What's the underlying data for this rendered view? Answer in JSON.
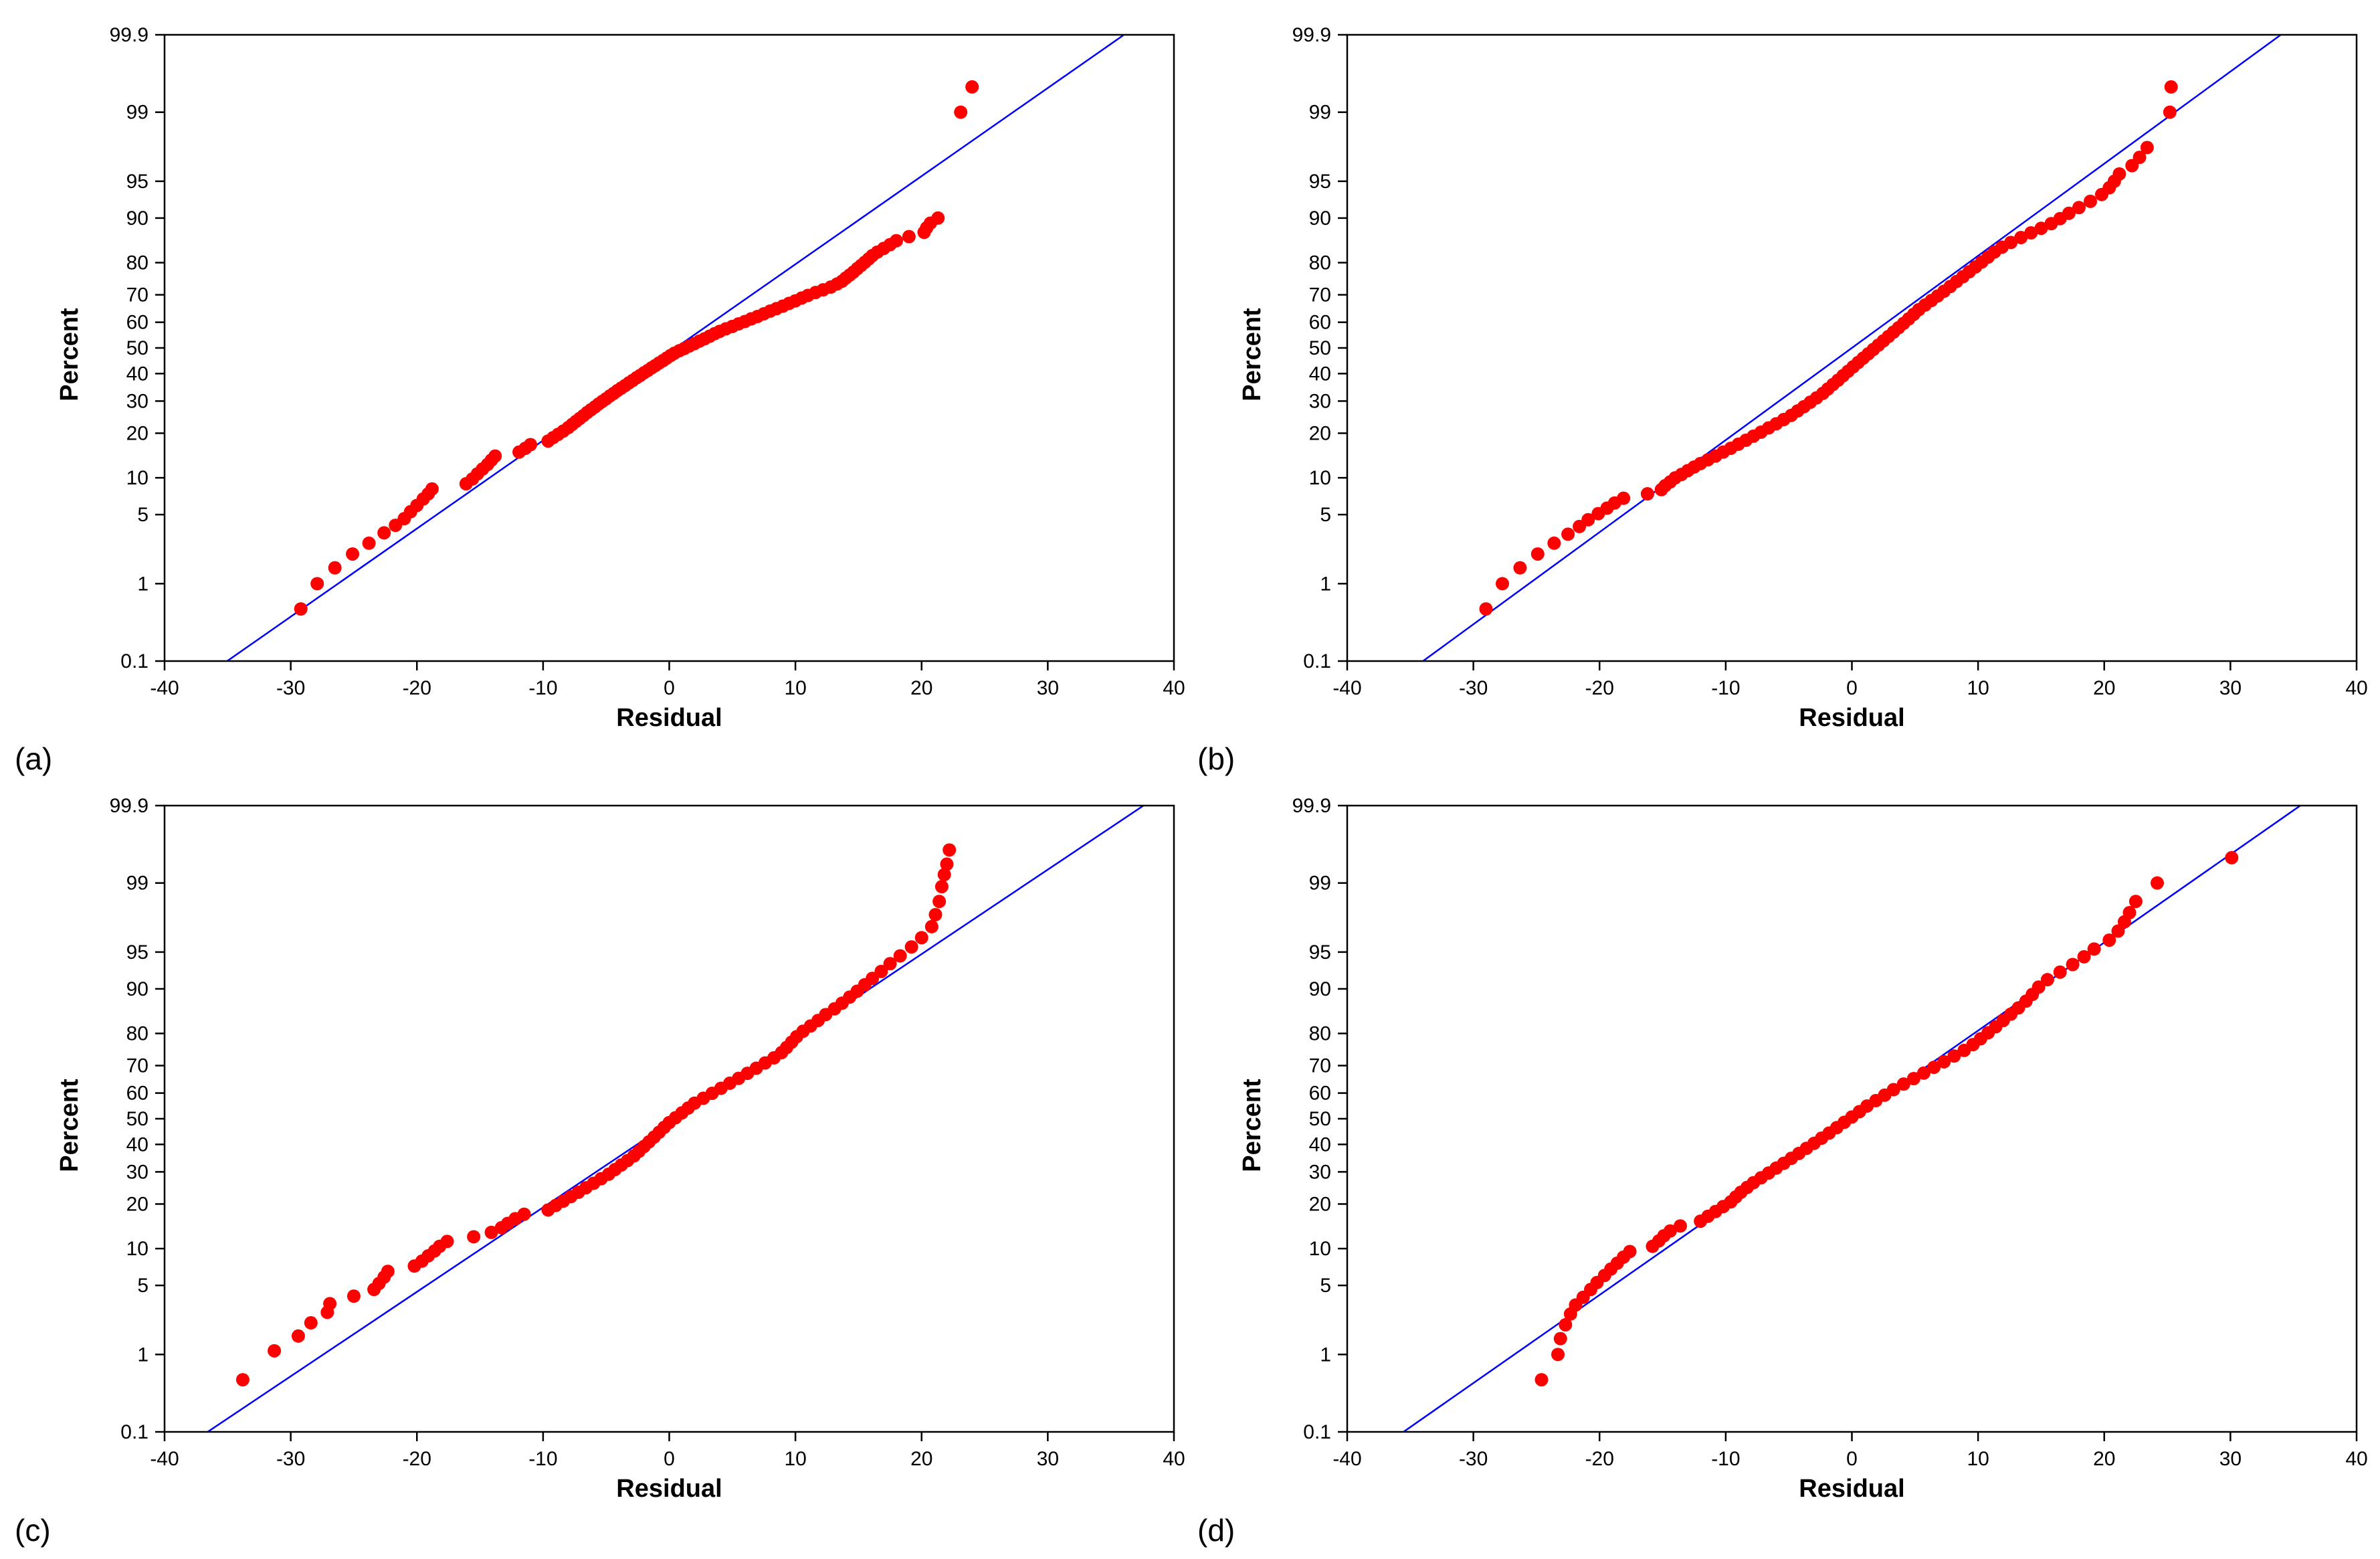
{
  "figure": {
    "panel_labels": [
      "(a)",
      "(b)",
      "(c)",
      "(d)"
    ]
  },
  "colors": {
    "points": "#ff0000",
    "fit_line": "#0000ff",
    "frame": "#000000"
  },
  "chart_data": [
    {
      "type": "scatter",
      "subtype": "normal-probability-plot",
      "panel": "(a)",
      "xlabel": "Residual",
      "ylabel": "Percent",
      "xlim": [
        -40,
        40
      ],
      "xticks": [
        -40,
        -30,
        -20,
        -10,
        0,
        10,
        20,
        30,
        40
      ],
      "xtick_labels": [
        "-40",
        "-30",
        "-20",
        "-10",
        "0",
        "10",
        "20",
        "30",
        "40"
      ],
      "ylim": [
        0.1,
        99.9
      ],
      "yticks": [
        0.1,
        1,
        5,
        10,
        20,
        30,
        40,
        50,
        60,
        70,
        80,
        90,
        95,
        99,
        99.9
      ],
      "ytick_labels": [
        "0.1",
        "1",
        "5",
        "10",
        "20",
        "30",
        "40",
        "50",
        "60",
        "70",
        "80",
        "90",
        "95",
        "99",
        "99.9"
      ],
      "fit_line": {
        "mean": 0.5,
        "sd": 11.5
      },
      "x": [
        -29.2,
        -27.9,
        -26.5,
        -25.1,
        -23.8,
        -22.6,
        -21.7,
        -21.0,
        -20.5,
        -20.0,
        -19.5,
        -19.1,
        -18.8,
        -16.1,
        -15.6,
        -15.2,
        -14.8,
        -14.4,
        -14.1,
        -13.8,
        -11.9,
        -11.4,
        -11.0,
        -9.6,
        -9.2,
        -8.8,
        -8.4,
        -8.0,
        -7.7,
        -7.4,
        -7.1,
        -6.8,
        -6.5,
        -6.2,
        -5.9,
        -5.6,
        -5.3,
        -5.0,
        -4.7,
        -4.4,
        -4.1,
        -3.8,
        -3.5,
        -3.2,
        -2.9,
        -2.6,
        -2.3,
        -2.0,
        -1.7,
        -1.4,
        -1.1,
        -0.8,
        -0.5,
        -0.2,
        0.1,
        0.4,
        0.8,
        1.2,
        1.6,
        2.0,
        2.4,
        2.8,
        3.2,
        3.6,
        4.0,
        4.5,
        5.0,
        5.5,
        6.0,
        6.5,
        7.0,
        7.5,
        8.0,
        8.5,
        9.0,
        9.5,
        10.0,
        10.5,
        11.0,
        11.6,
        12.2,
        12.8,
        13.3,
        13.7,
        14.0,
        14.3,
        14.6,
        14.9,
        15.2,
        15.5,
        15.8,
        16.1,
        16.5,
        17.0,
        17.5,
        18.0,
        19.0,
        20.2,
        20.4,
        20.7,
        21.3,
        23.1,
        24.0
      ],
      "y": [
        0.5,
        1.0,
        1.5,
        2.1,
        2.7,
        3.4,
        4.0,
        4.6,
        5.3,
        6.0,
        6.8,
        7.5,
        8.2,
        9.0,
        9.8,
        10.7,
        11.6,
        12.5,
        13.4,
        14.3,
        15.2,
        16.1,
        17.0,
        17.9,
        18.8,
        19.7,
        20.6,
        21.6,
        22.5,
        23.4,
        24.3,
        25.2,
        26.2,
        27.1,
        28.0,
        29.0,
        29.9,
        30.8,
        31.8,
        32.7,
        33.7,
        34.6,
        35.5,
        36.5,
        37.4,
        38.4,
        39.3,
        40.3,
        41.2,
        42.2,
        43.1,
        44.1,
        45.0,
        46.0,
        47.0,
        47.9,
        48.9,
        49.8,
        50.8,
        51.7,
        52.7,
        53.6,
        54.6,
        55.6,
        56.5,
        57.5,
        58.4,
        59.4,
        60.3,
        61.3,
        62.2,
        63.2,
        64.2,
        65.1,
        66.0,
        67.0,
        67.9,
        68.9,
        69.8,
        70.8,
        71.7,
        72.6,
        73.6,
        74.5,
        75.5,
        76.4,
        77.3,
        78.3,
        79.2,
        80.1,
        81.0,
        81.9,
        82.8,
        83.7,
        84.6,
        85.5,
        86.4,
        87.3,
        88.2,
        89.1,
        90.0,
        99.0,
        99.5
      ]
    },
    {
      "type": "scatter",
      "subtype": "normal-probability-plot",
      "panel": "(b)",
      "xlabel": "Residual",
      "ylabel": "Percent",
      "xlim": [
        -40,
        40
      ],
      "xticks": [
        -40,
        -30,
        -20,
        -10,
        0,
        10,
        20,
        30,
        40
      ],
      "xtick_labels": [
        "-40",
        "-30",
        "-20",
        "-10",
        "0",
        "10",
        "20",
        "30",
        "40"
      ],
      "ylim": [
        0.1,
        99.9
      ],
      "yticks": [
        0.1,
        1,
        5,
        10,
        20,
        30,
        40,
        50,
        60,
        70,
        80,
        90,
        95,
        99,
        99.9
      ],
      "ytick_labels": [
        "0.1",
        "1",
        "5",
        "10",
        "20",
        "30",
        "40",
        "50",
        "60",
        "70",
        "80",
        "90",
        "95",
        "99",
        "99.9"
      ],
      "fit_line": {
        "mean": 0.0,
        "sd": 11.0
      },
      "x": [
        -29.0,
        -27.7,
        -26.3,
        -24.9,
        -23.6,
        -22.5,
        -21.6,
        -20.9,
        -20.1,
        -19.4,
        -18.8,
        -18.1,
        -16.2,
        -15.1,
        -14.8,
        -14.4,
        -14.0,
        -13.5,
        -13.0,
        -12.5,
        -12.0,
        -11.4,
        -10.8,
        -10.2,
        -9.6,
        -9.0,
        -8.4,
        -7.8,
        -7.2,
        -6.6,
        -6.0,
        -5.4,
        -4.8,
        -4.3,
        -3.8,
        -3.3,
        -2.8,
        -2.3,
        -1.9,
        -1.5,
        -1.1,
        -0.7,
        -0.3,
        0.1,
        0.5,
        0.9,
        1.3,
        1.7,
        2.1,
        2.5,
        2.9,
        3.3,
        3.7,
        4.1,
        4.5,
        4.9,
        5.3,
        5.8,
        6.3,
        6.8,
        7.3,
        7.8,
        8.3,
        8.8,
        9.3,
        9.8,
        10.3,
        10.8,
        11.3,
        11.9,
        12.6,
        13.4,
        14.2,
        15.0,
        15.8,
        16.5,
        17.2,
        18.0,
        18.9,
        19.8,
        20.4,
        20.8,
        21.2,
        22.2,
        22.8,
        23.4,
        25.2,
        25.3
      ],
      "y": [
        0.5,
        1.0,
        1.5,
        2.1,
        2.7,
        3.3,
        3.9,
        4.5,
        5.1,
        5.7,
        6.3,
        6.9,
        7.5,
        8.1,
        8.7,
        9.3,
        10.0,
        10.6,
        11.3,
        12.0,
        12.7,
        13.5,
        14.3,
        15.2,
        16.1,
        17.1,
        18.1,
        19.2,
        20.3,
        21.5,
        22.7,
        24.0,
        25.3,
        26.7,
        28.1,
        29.6,
        31.1,
        32.7,
        34.3,
        35.9,
        37.5,
        39.2,
        40.9,
        42.6,
        44.3,
        46.0,
        47.7,
        49.4,
        51.1,
        52.8,
        54.5,
        56.2,
        57.9,
        59.6,
        61.3,
        63.0,
        64.7,
        66.4,
        68.0,
        69.6,
        71.2,
        72.8,
        74.4,
        75.9,
        77.4,
        78.8,
        80.2,
        81.5,
        82.8,
        84.0,
        85.1,
        86.2,
        87.2,
        88.1,
        89.0,
        89.9,
        90.8,
        91.7,
        92.6,
        93.5,
        94.3,
        95.0,
        95.7,
        96.4,
        97.0,
        97.6,
        99.0,
        99.5
      ]
    },
    {
      "type": "scatter",
      "subtype": "normal-probability-plot",
      "panel": "(c)",
      "xlabel": "Residual",
      "ylabel": "Percent",
      "xlim": [
        -40,
        40
      ],
      "xticks": [
        -40,
        -30,
        -20,
        -10,
        0,
        10,
        20,
        30,
        40
      ],
      "xtick_labels": [
        "-40",
        "-30",
        "-20",
        "-10",
        "0",
        "10",
        "20",
        "30",
        "40"
      ],
      "ylim": [
        0.1,
        99.9
      ],
      "yticks": [
        0.1,
        1,
        5,
        10,
        20,
        30,
        40,
        50,
        60,
        70,
        80,
        90,
        95,
        99,
        99.9
      ],
      "ytick_labels": [
        "0.1",
        "1",
        "5",
        "10",
        "20",
        "30",
        "40",
        "50",
        "60",
        "70",
        "80",
        "90",
        "95",
        "99",
        "99.9"
      ],
      "fit_line": {
        "mean": 0.5,
        "sd": 12.0
      },
      "x": [
        -33.8,
        -31.3,
        -29.4,
        -28.4,
        -27.1,
        -26.9,
        -25.0,
        -23.4,
        -23.0,
        -22.6,
        -22.3,
        -20.2,
        -19.6,
        -19.1,
        -18.6,
        -18.2,
        -17.6,
        -15.5,
        -14.1,
        -13.3,
        -12.8,
        -12.2,
        -11.5,
        -9.6,
        -9.0,
        -8.4,
        -7.8,
        -7.2,
        -6.6,
        -6.0,
        -5.4,
        -4.8,
        -4.3,
        -3.8,
        -3.3,
        -2.8,
        -2.4,
        -2.0,
        -1.6,
        -1.2,
        -0.8,
        -0.4,
        0.0,
        0.5,
        1.0,
        1.5,
        2.0,
        2.7,
        3.4,
        4.1,
        4.8,
        5.5,
        6.2,
        6.9,
        7.6,
        8.3,
        8.9,
        9.3,
        9.7,
        10.1,
        10.6,
        11.2,
        11.8,
        12.4,
        13.1,
        13.7,
        14.3,
        14.9,
        15.5,
        16.1,
        16.8,
        17.5,
        18.3,
        19.2,
        20.0,
        20.8,
        21.1,
        21.4,
        21.6,
        21.8,
        22.0,
        22.2
      ],
      "y": [
        0.5,
        1.1,
        1.6,
        2.2,
        2.8,
        3.4,
        4.0,
        4.6,
        5.2,
        5.9,
        6.6,
        7.3,
        8.0,
        8.8,
        9.6,
        10.4,
        11.3,
        12.2,
        13.1,
        14.1,
        15.1,
        16.2,
        17.3,
        18.4,
        19.6,
        20.8,
        22.1,
        23.4,
        24.8,
        26.2,
        27.7,
        29.2,
        30.8,
        32.4,
        34.0,
        35.7,
        37.4,
        39.2,
        41.0,
        42.8,
        44.7,
        46.6,
        48.5,
        50.4,
        52.3,
        54.2,
        56.1,
        58.0,
        59.9,
        61.8,
        63.7,
        65.5,
        67.3,
        69.1,
        70.9,
        72.6,
        74.3,
        75.9,
        77.5,
        79.1,
        80.6,
        82.0,
        83.4,
        84.8,
        86.1,
        87.3,
        88.5,
        89.6,
        90.7,
        91.7,
        92.7,
        93.7,
        94.6,
        95.5,
        96.3,
        97.1,
        97.8,
        98.4,
        98.9,
        99.2,
        99.4,
        99.6
      ]
    },
    {
      "type": "scatter",
      "subtype": "normal-probability-plot",
      "panel": "(d)",
      "xlabel": "Residual",
      "ylabel": "Percent",
      "xlim": [
        -40,
        40
      ],
      "xticks": [
        -40,
        -30,
        -20,
        -10,
        0,
        10,
        20,
        30,
        40
      ],
      "xtick_labels": [
        "-40",
        "-30",
        "-20",
        "-10",
        "0",
        "10",
        "20",
        "30",
        "40"
      ],
      "ylim": [
        0.1,
        99.9
      ],
      "yticks": [
        0.1,
        1,
        5,
        10,
        20,
        30,
        40,
        50,
        60,
        70,
        80,
        90,
        95,
        99,
        99.9
      ],
      "ytick_labels": [
        "0.1",
        "1",
        "5",
        "10",
        "20",
        "30",
        "40",
        "50",
        "60",
        "70",
        "80",
        "90",
        "95",
        "99",
        "99.9"
      ],
      "fit_line": {
        "mean": 0.0,
        "sd": 11.5
      },
      "x": [
        -24.6,
        -23.3,
        -23.1,
        -22.7,
        -22.3,
        -21.9,
        -21.3,
        -20.7,
        -20.2,
        -19.6,
        -19.1,
        -18.6,
        -18.1,
        -17.6,
        -15.8,
        -15.3,
        -14.9,
        -14.4,
        -13.6,
        -12.0,
        -11.4,
        -10.8,
        -10.2,
        -9.6,
        -9.2,
        -8.8,
        -8.3,
        -7.8,
        -7.2,
        -6.6,
        -6.0,
        -5.4,
        -4.8,
        -4.2,
        -3.6,
        -3.0,
        -2.4,
        -1.8,
        -1.2,
        -0.6,
        0.0,
        0.6,
        1.2,
        1.9,
        2.6,
        3.3,
        4.1,
        4.9,
        5.7,
        6.5,
        7.3,
        8.1,
        8.9,
        9.6,
        10.2,
        10.8,
        11.4,
        12.0,
        12.6,
        13.2,
        13.8,
        14.3,
        14.8,
        15.5,
        16.5,
        17.5,
        18.4,
        19.2,
        20.4,
        21.1,
        21.6,
        22.0,
        22.5,
        24.2,
        30.1
      ],
      "y": [
        0.5,
        1.0,
        1.5,
        2.1,
        2.7,
        3.3,
        3.9,
        4.6,
        5.3,
        6.1,
        6.9,
        7.7,
        8.6,
        9.5,
        10.4,
        11.4,
        12.4,
        13.4,
        14.5,
        15.6,
        16.8,
        18.0,
        19.3,
        20.6,
        22.0,
        23.4,
        24.9,
        26.4,
        28.0,
        29.6,
        31.3,
        33.0,
        34.8,
        36.6,
        38.5,
        40.4,
        42.4,
        44.4,
        46.5,
        48.6,
        50.7,
        52.8,
        55.0,
        57.1,
        59.2,
        61.3,
        63.4,
        65.4,
        67.4,
        69.4,
        71.3,
        73.2,
        75.0,
        76.8,
        78.5,
        80.2,
        81.8,
        83.4,
        84.9,
        86.3,
        87.7,
        89.0,
        90.3,
        91.5,
        92.6,
        93.6,
        94.5,
        95.3,
        96.1,
        96.8,
        97.4,
        97.9,
        98.4,
        99.0,
        99.5
      ]
    }
  ]
}
